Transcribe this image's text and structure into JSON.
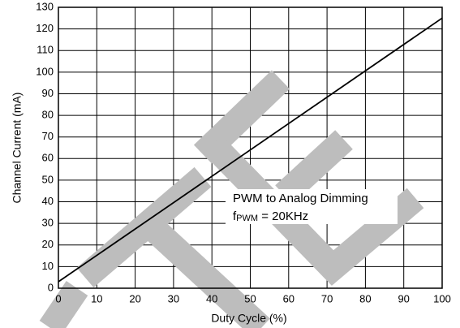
{
  "chart_data": {
    "type": "line",
    "x_label": "Duty Cycle (%)",
    "y_label": "Channel Current (mA)",
    "x": [
      0,
      100
    ],
    "values": [
      3,
      125
    ],
    "color": "#000000",
    "xlim": [
      0,
      100
    ],
    "xticks": [
      0,
      10,
      20,
      30,
      40,
      50,
      60,
      70,
      80,
      90,
      100
    ],
    "ylim": [
      0,
      130
    ],
    "yticks": [
      0,
      10,
      20,
      30,
      40,
      50,
      60,
      70,
      80,
      90,
      100,
      110,
      120,
      130
    ],
    "grid": true,
    "annotation": {
      "line1": "PWM to Analog Dimming",
      "symbol": "f",
      "subscript": "PWM",
      "rest": " = 20KHz"
    }
  }
}
